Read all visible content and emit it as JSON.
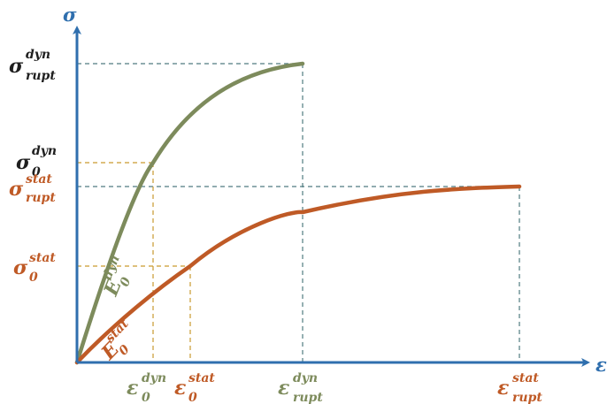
{
  "colors": {
    "axis": "#2f6fae",
    "dynamic": "#7d8b5c",
    "static": "#bf5a26",
    "guide_dynamic_rupture": "#4f7b80",
    "guide_initial": "#c99a2e",
    "text_dark": "#1f1f1f"
  },
  "axes": {
    "y_symbol": "σ",
    "x_symbol": "ε"
  },
  "labels": {
    "sigma_rupt_dyn": {
      "main": "σ",
      "sup": "dyn",
      "sub": "rupt"
    },
    "sigma_0_dyn": {
      "main": "σ",
      "sup": "dyn",
      "sub": "0"
    },
    "sigma_rupt_stat": {
      "main": "σ",
      "sup": "stat",
      "sub": "rupt"
    },
    "sigma_0_stat": {
      "main": "σ",
      "sup": "stat",
      "sub": "0"
    },
    "eps_0_dyn": {
      "main": "ε",
      "sup": "dyn",
      "sub": "0"
    },
    "eps_0_stat": {
      "main": "ε",
      "sup": "stat",
      "sub": "0"
    },
    "eps_rupt_dyn": {
      "main": "ε",
      "sup": "dyn",
      "sub": "rupt"
    },
    "eps_rupt_stat": {
      "main": "ε",
      "sup": "stat",
      "sub": "rupt"
    },
    "E_0_dyn": {
      "main": "E",
      "sup": "dyn",
      "sub": "0"
    },
    "E_0_stat": {
      "main": "E",
      "sup": "stat",
      "sub": "0"
    }
  }
}
